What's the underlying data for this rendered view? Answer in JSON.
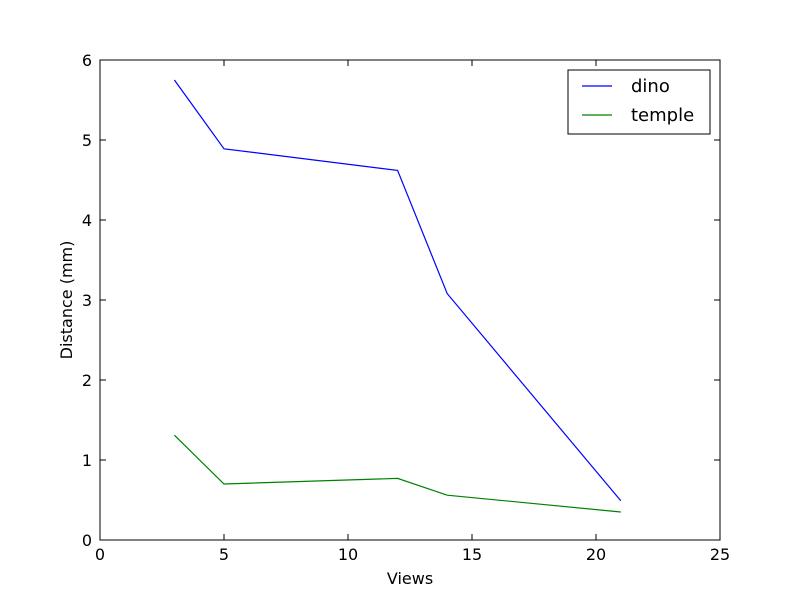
{
  "chart_data": {
    "type": "line",
    "x_label": "Views",
    "y_label": "Distance (mm)",
    "x": [
      3,
      5,
      12,
      14,
      21
    ],
    "series": [
      {
        "name": "dino",
        "color": "#0000ff",
        "values": [
          5.75,
          4.89,
          4.62,
          3.08,
          0.49
        ]
      },
      {
        "name": "temple",
        "color": "#008000",
        "values": [
          1.31,
          0.7,
          0.77,
          0.56,
          0.35
        ]
      }
    ],
    "xlim": [
      0,
      25
    ],
    "xticks": [
      0,
      5,
      10,
      15,
      20,
      25
    ],
    "ylim": [
      0,
      6
    ],
    "yticks": [
      0,
      1,
      2,
      3,
      4,
      5,
      6
    ],
    "legend": "upper right"
  }
}
